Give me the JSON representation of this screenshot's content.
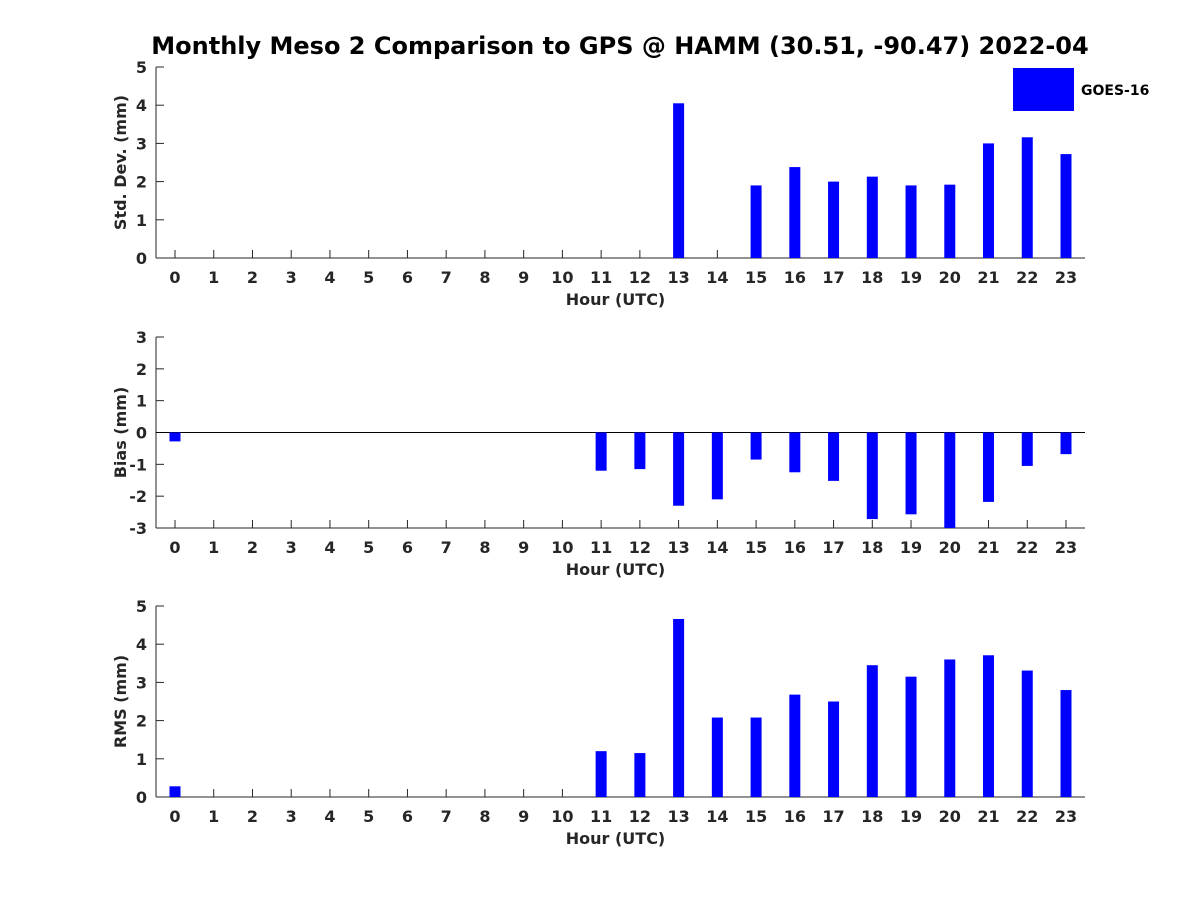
{
  "title": "Monthly Meso 2 Comparison to GPS @ HAMM (30.51, -90.47) 2022-04",
  "legend": {
    "label": "GOES-16",
    "placement": "top-right"
  },
  "colors": {
    "bar": "#0000ff",
    "axis": "#262626"
  },
  "chart_data": [
    {
      "type": "bar",
      "name": "std_dev",
      "xlabel": "Hour (UTC)",
      "ylabel": "Std. Dev. (mm)",
      "ylim": [
        0,
        5
      ],
      "yticks": [
        0,
        1,
        2,
        3,
        4,
        5
      ],
      "categories": [
        0,
        1,
        2,
        3,
        4,
        5,
        6,
        7,
        8,
        9,
        10,
        11,
        12,
        13,
        14,
        15,
        16,
        17,
        18,
        19,
        20,
        21,
        22,
        23
      ],
      "series": [
        {
          "name": "GOES-16",
          "values": [
            null,
            null,
            null,
            null,
            null,
            null,
            null,
            null,
            null,
            null,
            null,
            null,
            null,
            4.05,
            null,
            1.9,
            2.38,
            2.0,
            2.13,
            1.9,
            1.92,
            3.0,
            3.16,
            2.72
          ]
        }
      ],
      "zero_line": false
    },
    {
      "type": "bar",
      "name": "bias",
      "xlabel": "Hour (UTC)",
      "ylabel": "Bias (mm)",
      "ylim": [
        -3,
        3
      ],
      "yticks": [
        -3,
        -2,
        -1,
        0,
        1,
        2,
        3
      ],
      "categories": [
        0,
        1,
        2,
        3,
        4,
        5,
        6,
        7,
        8,
        9,
        10,
        11,
        12,
        13,
        14,
        15,
        16,
        17,
        18,
        19,
        20,
        21,
        22,
        23
      ],
      "series": [
        {
          "name": "GOES-16",
          "values": [
            -0.28,
            null,
            null,
            null,
            null,
            null,
            null,
            null,
            null,
            null,
            null,
            -1.2,
            -1.15,
            -2.3,
            -2.1,
            -0.85,
            -1.25,
            -1.52,
            -2.72,
            -2.57,
            -3.0,
            -2.18,
            -1.05,
            -0.68
          ]
        }
      ],
      "zero_line": true
    },
    {
      "type": "bar",
      "name": "rms",
      "xlabel": "Hour (UTC)",
      "ylabel": "RMS (mm)",
      "ylim": [
        0,
        5
      ],
      "yticks": [
        0,
        1,
        2,
        3,
        4,
        5
      ],
      "categories": [
        0,
        1,
        2,
        3,
        4,
        5,
        6,
        7,
        8,
        9,
        10,
        11,
        12,
        13,
        14,
        15,
        16,
        17,
        18,
        19,
        20,
        21,
        22,
        23
      ],
      "series": [
        {
          "name": "GOES-16",
          "values": [
            0.28,
            null,
            null,
            null,
            null,
            null,
            null,
            null,
            null,
            null,
            null,
            1.2,
            1.15,
            4.66,
            2.08,
            2.08,
            2.68,
            2.5,
            3.45,
            3.15,
            3.6,
            3.71,
            3.31,
            2.8
          ]
        }
      ],
      "zero_line": false
    }
  ]
}
